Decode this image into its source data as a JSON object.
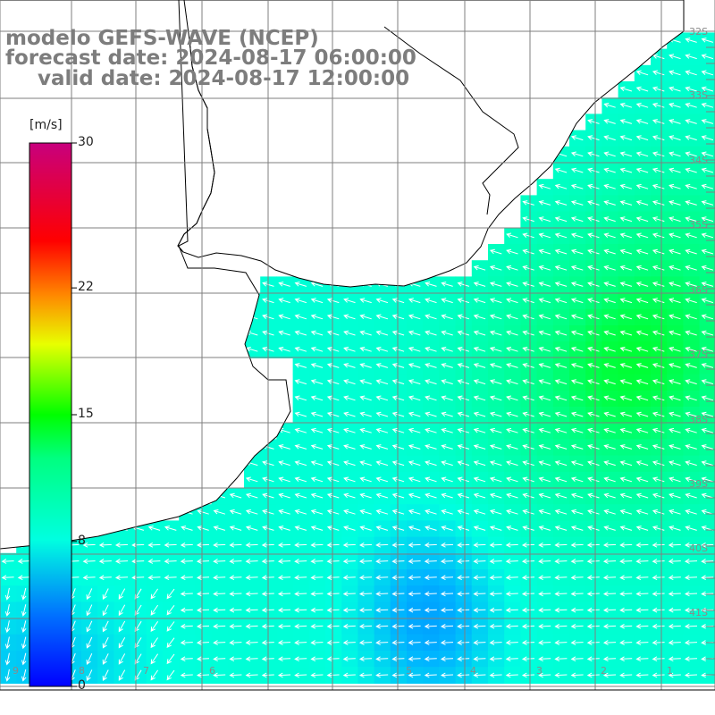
{
  "title": {
    "model": "modelo GEFS-WAVE (NCEP)",
    "forecast": "forecast date: 2024-08-17 06:00:00",
    "valid": "valid date: 2024-08-17 12:00:00"
  },
  "colorbar": {
    "unit": "[m/s]",
    "min": 0,
    "max": 30,
    "ticks": [
      {
        "value": 30,
        "label": "30"
      },
      {
        "value": 22,
        "label": "22"
      },
      {
        "value": 15,
        "label": "15"
      },
      {
        "value": 8,
        "label": "8"
      },
      {
        "value": 0,
        "label": "0"
      }
    ],
    "colors": [
      "#0000ff",
      "#0096ff",
      "#00ffd2",
      "#00ff00",
      "#ffff00",
      "#ff0000",
      "#c8007d"
    ]
  },
  "latitude_labels": [
    "32S",
    "33S",
    "34S",
    "35S",
    "36S",
    "37S",
    "38S",
    "39S",
    "40S",
    "41S"
  ],
  "longitude_labels": [
    "9",
    "8",
    "7",
    "6",
    "5",
    "4",
    "3",
    "2",
    "1"
  ],
  "colors": {
    "land": "#ffffff",
    "coast": "#000000",
    "grid": "#7f7f7f",
    "arrow": "#ffffff",
    "title": "#7d7d7d"
  },
  "wind_direction": "easterly (arrows point west / south-west)"
}
